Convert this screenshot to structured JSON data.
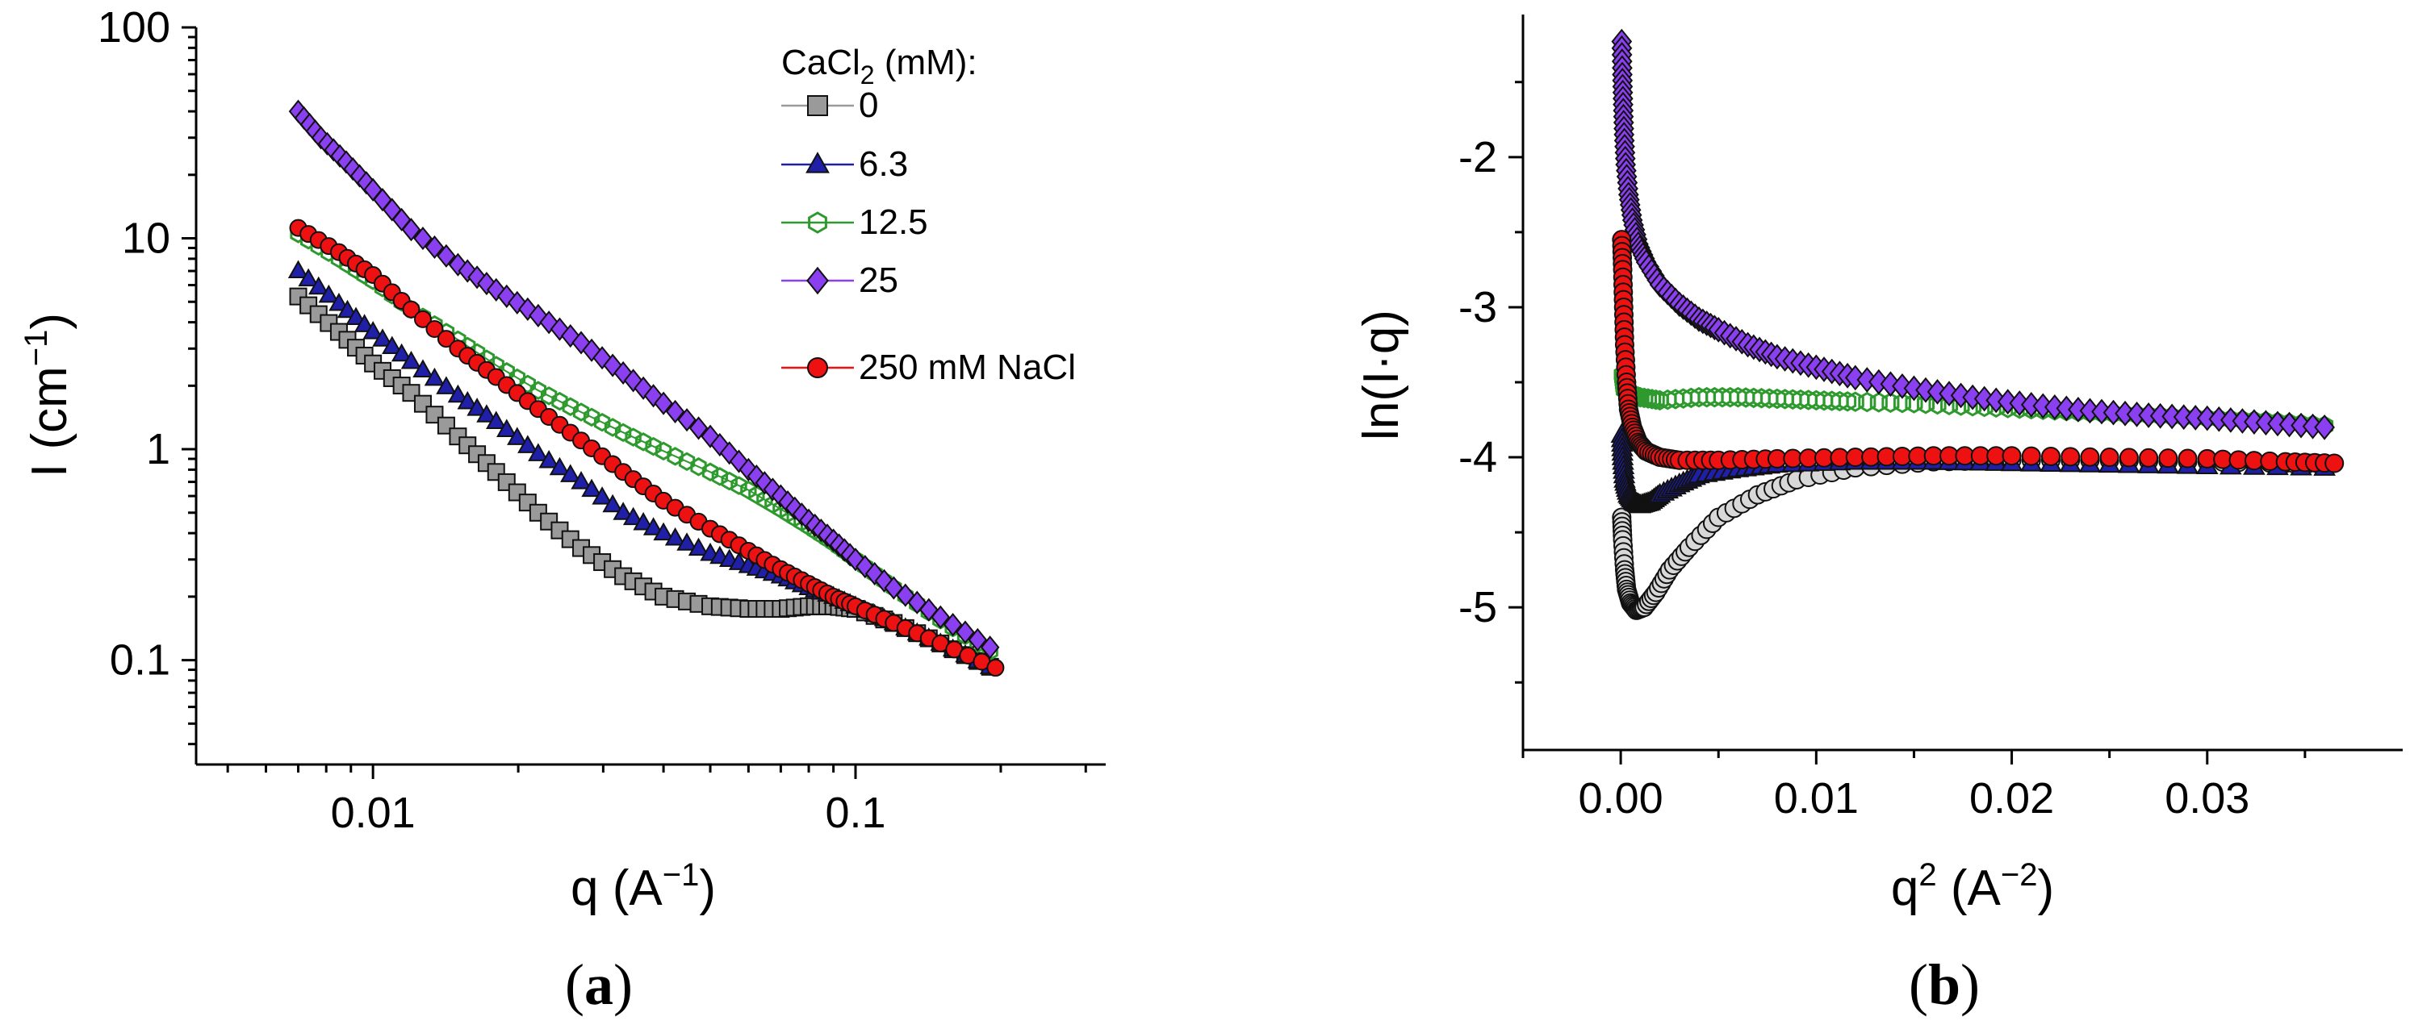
{
  "chart_data": [
    {
      "type": "scatter",
      "panel_label": {
        "open": "(",
        "letter": "a",
        "close": ")"
      },
      "xscale": "log",
      "yscale": "log",
      "xlabel": {
        "main": "q (A",
        "sup": "−1",
        "end": ")"
      },
      "ylabel": {
        "main": "I (cm",
        "sup": "−1",
        "end": ")"
      },
      "xlim": [
        0.0043,
        0.33
      ],
      "ylim": [
        0.032,
        100
      ],
      "x_ticks": [
        {
          "value": 0.01,
          "label": "0.01"
        },
        {
          "value": 0.1,
          "label": "0.1"
        }
      ],
      "y_ticks": [
        {
          "value": 0.1,
          "label": "0.1"
        },
        {
          "value": 1,
          "label": "1"
        },
        {
          "value": 10,
          "label": "10"
        },
        {
          "value": 100,
          "label": "100"
        }
      ],
      "legend": {
        "title_main": "CaCl",
        "title_sub": "2",
        "title_end": " (mM):",
        "entries": [
          "0",
          "6.3",
          "12.5",
          "25",
          "250 mM NaCl"
        ],
        "placement": "top-right"
      },
      "series": [
        {
          "name": "0",
          "marker": "square",
          "color": "#9a9a9a",
          "points": [
            [
              0.007,
              5.3
            ],
            [
              0.0085,
              3.6
            ],
            [
              0.01,
              2.55
            ],
            [
              0.012,
              1.85
            ],
            [
              0.015,
              1.15
            ],
            [
              0.018,
              0.78
            ],
            [
              0.022,
              0.5
            ],
            [
              0.027,
              0.34
            ],
            [
              0.033,
              0.25
            ],
            [
              0.04,
              0.2
            ],
            [
              0.05,
              0.18
            ],
            [
              0.06,
              0.175
            ],
            [
              0.07,
              0.175
            ],
            [
              0.08,
              0.18
            ],
            [
              0.09,
              0.18
            ],
            [
              0.1,
              0.175
            ],
            [
              0.12,
              0.15
            ],
            [
              0.15,
              0.12
            ],
            [
              0.19,
              0.093
            ]
          ]
        },
        {
          "name": "6.3",
          "marker": "triangle",
          "color": "#1f1fa8",
          "points": [
            [
              0.007,
              7.0
            ],
            [
              0.0085,
              4.9
            ],
            [
              0.01,
              3.6
            ],
            [
              0.012,
              2.6
            ],
            [
              0.015,
              1.8
            ],
            [
              0.018,
              1.35
            ],
            [
              0.022,
              0.95
            ],
            [
              0.027,
              0.7
            ],
            [
              0.033,
              0.5
            ],
            [
              0.04,
              0.4
            ],
            [
              0.05,
              0.32
            ],
            [
              0.06,
              0.28
            ],
            [
              0.07,
              0.25
            ],
            [
              0.08,
              0.22
            ],
            [
              0.09,
              0.2
            ],
            [
              0.1,
              0.18
            ],
            [
              0.12,
              0.15
            ],
            [
              0.15,
              0.12
            ],
            [
              0.19,
              0.093
            ]
          ]
        },
        {
          "name": "12.5",
          "marker": "hexagon",
          "color": "#2e9a2e",
          "points": [
            [
              0.007,
              10.5
            ],
            [
              0.0085,
              8.0
            ],
            [
              0.01,
              6.3
            ],
            [
              0.012,
              4.6
            ],
            [
              0.015,
              3.3
            ],
            [
              0.018,
              2.5
            ],
            [
              0.022,
              1.9
            ],
            [
              0.027,
              1.5
            ],
            [
              0.033,
              1.2
            ],
            [
              0.04,
              0.98
            ],
            [
              0.05,
              0.78
            ],
            [
              0.06,
              0.64
            ],
            [
              0.07,
              0.52
            ],
            [
              0.08,
              0.43
            ],
            [
              0.09,
              0.36
            ],
            [
              0.1,
              0.3
            ],
            [
              0.12,
              0.22
            ],
            [
              0.15,
              0.155
            ],
            [
              0.19,
              0.11
            ]
          ]
        },
        {
          "name": "25",
          "marker": "diamond",
          "color": "#8a3ff0",
          "points": [
            [
              0.007,
              40
            ],
            [
              0.0078,
              30
            ],
            [
              0.0088,
              23
            ],
            [
              0.01,
              17
            ],
            [
              0.012,
              11
            ],
            [
              0.015,
              7.5
            ],
            [
              0.018,
              5.7
            ],
            [
              0.022,
              4.3
            ],
            [
              0.027,
              3.2
            ],
            [
              0.033,
              2.3
            ],
            [
              0.04,
              1.65
            ],
            [
              0.05,
              1.15
            ],
            [
              0.06,
              0.8
            ],
            [
              0.07,
              0.6
            ],
            [
              0.08,
              0.46
            ],
            [
              0.09,
              0.37
            ],
            [
              0.1,
              0.3
            ],
            [
              0.12,
              0.22
            ],
            [
              0.15,
              0.16
            ],
            [
              0.19,
              0.115
            ]
          ]
        },
        {
          "name": "250 mM NaCl",
          "marker": "circle",
          "color": "#ee1111",
          "points": [
            [
              0.007,
              11.2
            ],
            [
              0.0085,
              8.6
            ],
            [
              0.01,
              6.7
            ],
            [
              0.012,
              4.6
            ],
            [
              0.015,
              3.0
            ],
            [
              0.018,
              2.2
            ],
            [
              0.022,
              1.55
            ],
            [
              0.027,
              1.1
            ],
            [
              0.033,
              0.78
            ],
            [
              0.04,
              0.57
            ],
            [
              0.05,
              0.42
            ],
            [
              0.06,
              0.33
            ],
            [
              0.07,
              0.27
            ],
            [
              0.08,
              0.23
            ],
            [
              0.09,
              0.2
            ],
            [
              0.1,
              0.18
            ],
            [
              0.12,
              0.15
            ],
            [
              0.15,
              0.12
            ],
            [
              0.195,
              0.092
            ]
          ]
        }
      ]
    },
    {
      "type": "scatter",
      "panel_label": {
        "open": "(",
        "letter": "b",
        "close": ")"
      },
      "xscale": "linear",
      "yscale": "linear",
      "xlabel": {
        "main": "q",
        "sup1": "2",
        "mid": " (A",
        "sup2": "−2",
        "end": ")"
      },
      "ylabel": "ln(I·q)",
      "xlim": [
        -0.005,
        0.04
      ],
      "ylim": [
        -5.95,
        -1.05
      ],
      "x_ticks": [
        {
          "value": 0.0,
          "label": "0.00"
        },
        {
          "value": 0.01,
          "label": "0.01"
        },
        {
          "value": 0.02,
          "label": "0.02"
        },
        {
          "value": 0.03,
          "label": "0.03"
        }
      ],
      "y_ticks": [
        {
          "value": -2,
          "label": "-2"
        },
        {
          "value": -3,
          "label": "-3"
        },
        {
          "value": -4,
          "label": "-4"
        },
        {
          "value": -5,
          "label": "-5"
        }
      ],
      "series": [
        {
          "name": "0",
          "marker": "circle-open",
          "color": "#9a9a9a",
          "points": [
            [
              5e-05,
              -4.4
            ],
            [
              0.0001,
              -4.55
            ],
            [
              0.0002,
              -4.75
            ],
            [
              0.0003,
              -4.88
            ],
            [
              0.0005,
              -4.97
            ],
            [
              0.0008,
              -5.02
            ],
            [
              0.0012,
              -5.0
            ],
            [
              0.0018,
              -4.9
            ],
            [
              0.0025,
              -4.75
            ],
            [
              0.0035,
              -4.6
            ],
            [
              0.005,
              -4.4
            ],
            [
              0.007,
              -4.25
            ],
            [
              0.009,
              -4.15
            ],
            [
              0.012,
              -4.07
            ],
            [
              0.016,
              -4.03
            ],
            [
              0.02,
              -4.02
            ],
            [
              0.025,
              -4.02
            ],
            [
              0.03,
              -4.03
            ],
            [
              0.034,
              -4.04
            ],
            [
              0.036,
              -4.04
            ]
          ]
        },
        {
          "name": "6.3",
          "marker": "triangle",
          "color": "#1f1fa8",
          "points": [
            [
              5e-05,
              -3.85
            ],
            [
              0.0001,
              -4.0
            ],
            [
              0.0002,
              -4.15
            ],
            [
              0.0004,
              -4.25
            ],
            [
              0.0007,
              -4.3
            ],
            [
              0.001,
              -4.32
            ],
            [
              0.0015,
              -4.3
            ],
            [
              0.002,
              -4.25
            ],
            [
              0.003,
              -4.18
            ],
            [
              0.004,
              -4.12
            ],
            [
              0.006,
              -4.08
            ],
            [
              0.008,
              -4.05
            ],
            [
              0.012,
              -4.03
            ],
            [
              0.016,
              -4.03
            ],
            [
              0.02,
              -4.04
            ],
            [
              0.025,
              -4.05
            ],
            [
              0.03,
              -4.06
            ],
            [
              0.036,
              -4.07
            ]
          ]
        },
        {
          "name": "12.5",
          "marker": "hexagon",
          "color": "#2e9a2e",
          "points": [
            [
              0.0001,
              -3.45
            ],
            [
              0.0002,
              -3.55
            ],
            [
              0.0005,
              -3.58
            ],
            [
              0.001,
              -3.6
            ],
            [
              0.002,
              -3.62
            ],
            [
              0.004,
              -3.6
            ],
            [
              0.006,
              -3.6
            ],
            [
              0.008,
              -3.61
            ],
            [
              0.01,
              -3.62
            ],
            [
              0.012,
              -3.63
            ],
            [
              0.015,
              -3.64
            ],
            [
              0.018,
              -3.66
            ],
            [
              0.021,
              -3.68
            ],
            [
              0.024,
              -3.7
            ],
            [
              0.027,
              -3.72
            ],
            [
              0.03,
              -3.74
            ],
            [
              0.033,
              -3.76
            ],
            [
              0.036,
              -3.79
            ]
          ]
        },
        {
          "name": "25",
          "marker": "diamond",
          "color": "#8a3ff0",
          "points": [
            [
              5e-05,
              -1.23
            ],
            [
              8e-05,
              -1.45
            ],
            [
              0.00012,
              -1.65
            ],
            [
              0.00017,
              -1.85
            ],
            [
              0.00025,
              -2.05
            ],
            [
              0.0004,
              -2.25
            ],
            [
              0.0006,
              -2.42
            ],
            [
              0.0009,
              -2.58
            ],
            [
              0.0013,
              -2.7
            ],
            [
              0.002,
              -2.85
            ],
            [
              0.003,
              -2.98
            ],
            [
              0.004,
              -3.08
            ],
            [
              0.005,
              -3.15
            ],
            [
              0.0065,
              -3.25
            ],
            [
              0.008,
              -3.33
            ],
            [
              0.01,
              -3.4
            ],
            [
              0.012,
              -3.47
            ],
            [
              0.015,
              -3.54
            ],
            [
              0.018,
              -3.6
            ],
            [
              0.021,
              -3.65
            ],
            [
              0.024,
              -3.69
            ],
            [
              0.027,
              -3.72
            ],
            [
              0.03,
              -3.74
            ],
            [
              0.033,
              -3.77
            ],
            [
              0.036,
              -3.8
            ]
          ]
        },
        {
          "name": "250 mM NaCl",
          "marker": "circle",
          "color": "#ee1111",
          "points": [
            [
              5e-05,
              -2.55
            ],
            [
              0.0001,
              -2.75
            ],
            [
              0.00015,
              -3.0
            ],
            [
              0.0002,
              -3.25
            ],
            [
              0.0003,
              -3.5
            ],
            [
              0.0004,
              -3.68
            ],
            [
              0.0006,
              -3.8
            ],
            [
              0.0009,
              -3.9
            ],
            [
              0.0013,
              -3.96
            ],
            [
              0.002,
              -4.0
            ],
            [
              0.003,
              -4.02
            ],
            [
              0.005,
              -4.02
            ],
            [
              0.008,
              -4.01
            ],
            [
              0.012,
              -4.0
            ],
            [
              0.016,
              -3.99
            ],
            [
              0.02,
              -3.99
            ],
            [
              0.025,
              -4.0
            ],
            [
              0.03,
              -4.01
            ],
            [
              0.034,
              -4.03
            ],
            [
              0.0365,
              -4.04
            ]
          ]
        }
      ]
    }
  ]
}
